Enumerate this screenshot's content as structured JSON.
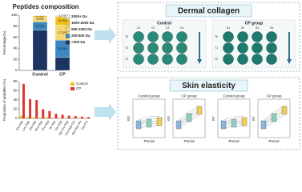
{
  "chart_data": [
    {
      "type": "stacked_bar",
      "title": "Peptides composition",
      "y_label": "Percentage(%)",
      "categories": [
        "Control",
        "CP"
      ],
      "series": [
        {
          "name": "2000+ Da",
          "color": "#dfe6ee",
          "values": [
            1.01,
            2.77
          ],
          "value_labels": [
            "1.01%",
            "2.77%"
          ]
        },
        {
          "name": "1000-2000 Da",
          "color": "#f3c21a",
          "values": [
            2.15,
            15.39
          ],
          "value_labels": [
            "2.15%",
            "15.39%"
          ]
        },
        {
          "name": "500-1000 Da",
          "color": "#f7d774",
          "values": [
            9.03,
            27.22
          ],
          "value_labels": [
            "9.03%",
            "27.22%"
          ]
        },
        {
          "name": "200-500 Da",
          "color": "#3d86c0",
          "values": [
            15.11,
            30.9
          ],
          "value_labels": [
            "15.11%",
            "30.90%"
          ]
        },
        {
          "name": "<200 Da",
          "color": "#1e3563",
          "values": [
            72.7,
            23.72
          ],
          "value_labels": [
            "72.70%",
            "23.72%"
          ]
        }
      ],
      "ylim": [
        0,
        100
      ],
      "yticks": [
        0,
        20,
        40,
        60,
        80,
        100
      ]
    },
    {
      "type": "bar",
      "y_label": "Proportion of peptides (%)",
      "categories": [
        "Glu-Hyp",
        "Leu-Hyp",
        "Ala-Hyp",
        "Phe-Hyp",
        "Pro-Hyp",
        "Ile-Hyp",
        "Ser-Hyp",
        "Gly-Pro-Hyp",
        "Pro-Hyp-Gly",
        "Ala-Hyp-Gly",
        "Gly-Pro"
      ],
      "series": [
        {
          "name": "Control",
          "color": "#f3c21a",
          "values": [
            6,
            3,
            2,
            2,
            3,
            1,
            1,
            1,
            1,
            1,
            1
          ]
        },
        {
          "name": "CP",
          "color": "#e0312b",
          "values": [
            75,
            42,
            40,
            20,
            16,
            10,
            8,
            6,
            5,
            4,
            3
          ]
        }
      ],
      "ylim": [
        0,
        80
      ],
      "yticks": [
        0,
        20,
        40,
        60,
        80
      ]
    }
  ],
  "panels": {
    "collagen": {
      "title": "Dermal collagen",
      "groups": [
        {
          "name": "Control",
          "columns": [
            "C1",
            "C2",
            "C3",
            "C4"
          ]
        },
        {
          "name": "CP group",
          "columns": [
            "S1",
            "S2",
            "S3",
            "S4"
          ]
        }
      ],
      "rows": [
        "T0",
        "T1",
        "T2"
      ]
    },
    "elasticity": {
      "title": "Skin elasticity",
      "plots": [
        {
          "group": "Control group",
          "y_label": "R2",
          "x_label": "Period"
        },
        {
          "group": "CP group",
          "y_label": "R2",
          "x_label": "Period"
        },
        {
          "group": "Control group",
          "y_label": "R7",
          "x_label": "Period"
        },
        {
          "group": "CP group",
          "y_label": "R7",
          "x_label": "Period"
        }
      ]
    }
  }
}
